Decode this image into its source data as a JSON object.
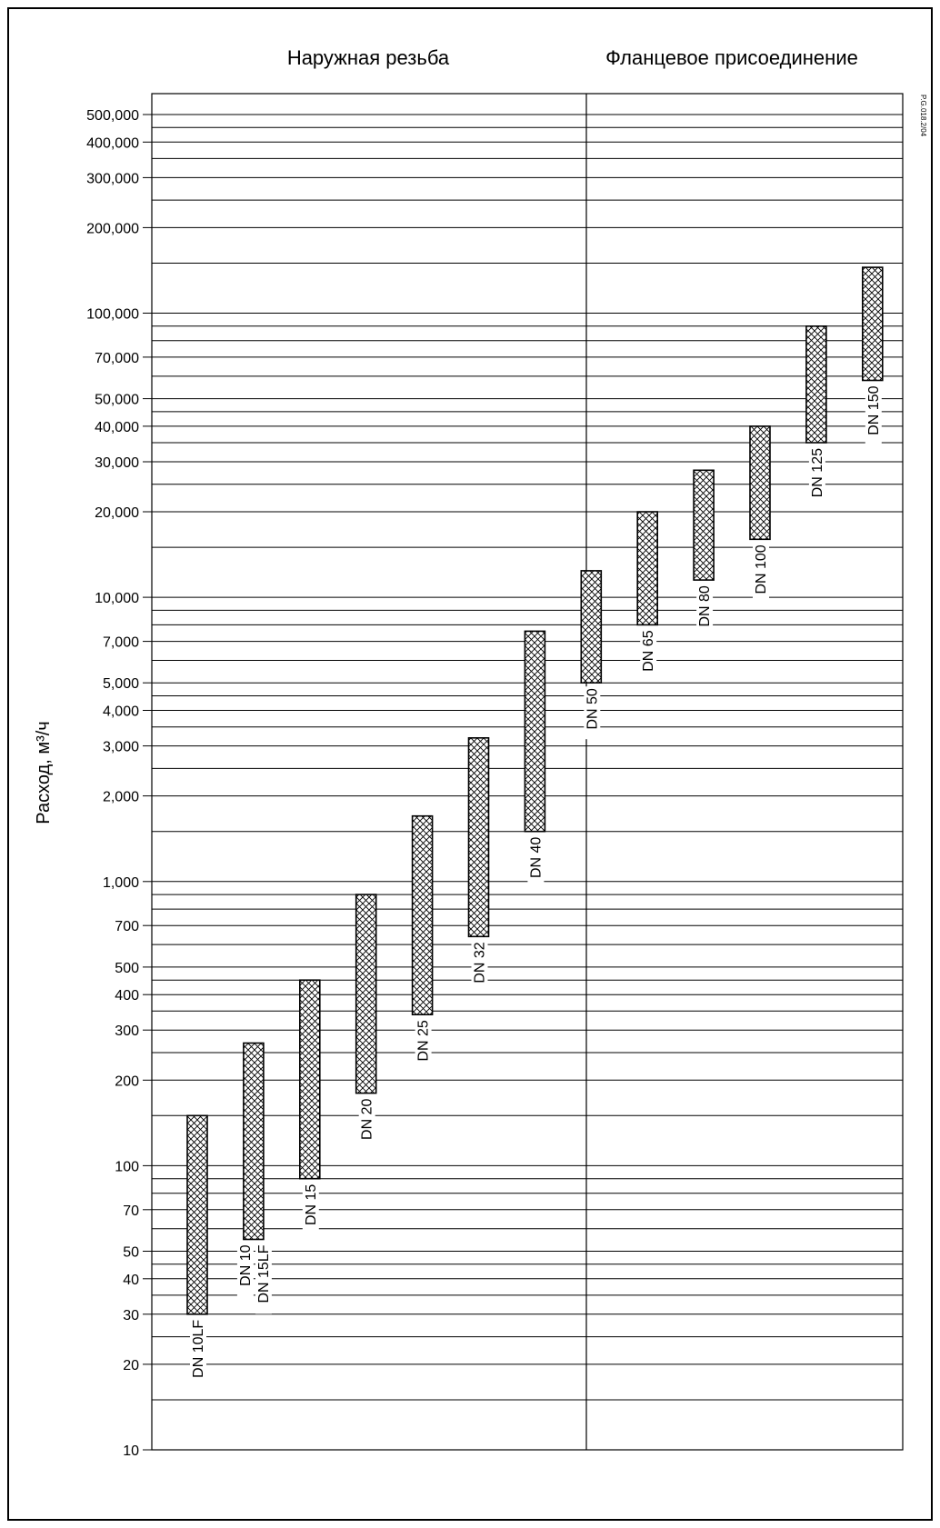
{
  "chart_data": {
    "type": "bar",
    "subtype": "floating-range",
    "ylabel": "Расход, м³/ч",
    "yscale": "log",
    "ylim": [
      10,
      500000
    ],
    "grid": true,
    "section_titles": [
      "Наружная резьба",
      "Фланцевое присоединение"
    ],
    "doc_code": "P.G.018.2/04",
    "yticks": [
      {
        "value": 10,
        "label": "10"
      },
      {
        "value": 20,
        "label": "20"
      },
      {
        "value": 30,
        "label": "30"
      },
      {
        "value": 40,
        "label": "40"
      },
      {
        "value": 50,
        "label": "50"
      },
      {
        "value": 70,
        "label": "70"
      },
      {
        "value": 100,
        "label": "100"
      },
      {
        "value": 200,
        "label": "200"
      },
      {
        "value": 300,
        "label": "300"
      },
      {
        "value": 400,
        "label": "400"
      },
      {
        "value": 500,
        "label": "500"
      },
      {
        "value": 700,
        "label": "700"
      },
      {
        "value": 1000,
        "label": "1,000"
      },
      {
        "value": 2000,
        "label": "2,000"
      },
      {
        "value": 3000,
        "label": "3,000"
      },
      {
        "value": 4000,
        "label": "4,000"
      },
      {
        "value": 5000,
        "label": "5,000"
      },
      {
        "value": 7000,
        "label": "7,000"
      },
      {
        "value": 10000,
        "label": "10,000"
      },
      {
        "value": 20000,
        "label": "20,000"
      },
      {
        "value": 30000,
        "label": "30,000"
      },
      {
        "value": 40000,
        "label": "40,000"
      },
      {
        "value": 50000,
        "label": "50,000"
      },
      {
        "value": 70000,
        "label": "70,000"
      },
      {
        "value": 100000,
        "label": "100,000"
      },
      {
        "value": 200000,
        "label": "200,000"
      },
      {
        "value": 300000,
        "label": "300,000"
      },
      {
        "value": 400000,
        "label": "400,000"
      },
      {
        "value": 500000,
        "label": "500,000"
      }
    ],
    "gridlines": [
      15,
      20,
      25,
      30,
      35,
      40,
      45,
      50,
      60,
      70,
      80,
      90,
      100,
      150,
      200,
      250,
      300,
      350,
      400,
      450,
      500,
      600,
      700,
      800,
      900,
      1000,
      1500,
      2000,
      2500,
      3000,
      3500,
      4000,
      4500,
      5000,
      6000,
      7000,
      8000,
      9000,
      10000,
      15000,
      20000,
      25000,
      30000,
      35000,
      40000,
      45000,
      50000,
      60000,
      70000,
      80000,
      90000,
      100000,
      150000,
      200000,
      250000,
      300000,
      350000,
      400000,
      450000,
      500000
    ],
    "series": [
      {
        "labels": [
          "DN 10LF"
        ],
        "low": 30,
        "high": 150
      },
      {
        "labels": [
          "DN 10",
          "DN 15LF"
        ],
        "low": 55,
        "high": 270
      },
      {
        "labels": [
          "DN 15"
        ],
        "low": 90,
        "high": 450
      },
      {
        "labels": [
          "DN 20"
        ],
        "low": 180,
        "high": 900
      },
      {
        "labels": [
          "DN 25"
        ],
        "low": 340,
        "high": 1700
      },
      {
        "labels": [
          "DN 32"
        ],
        "low": 640,
        "high": 3200
      },
      {
        "labels": [
          "DN 40"
        ],
        "low": 1500,
        "high": 7600
      },
      {
        "labels": [
          "DN 50"
        ],
        "low": 5000,
        "high": 12400
      },
      {
        "labels": [
          "DN 65"
        ],
        "low": 8000,
        "high": 20000
      },
      {
        "labels": [
          "DN 80"
        ],
        "low": 11500,
        "high": 28000
      },
      {
        "labels": [
          "DN 100"
        ],
        "low": 16000,
        "high": 40000
      },
      {
        "labels": [
          "DN 125"
        ],
        "low": 35000,
        "high": 90000
      },
      {
        "labels": [
          "DN 150"
        ],
        "low": 58000,
        "high": 145000
      }
    ]
  }
}
